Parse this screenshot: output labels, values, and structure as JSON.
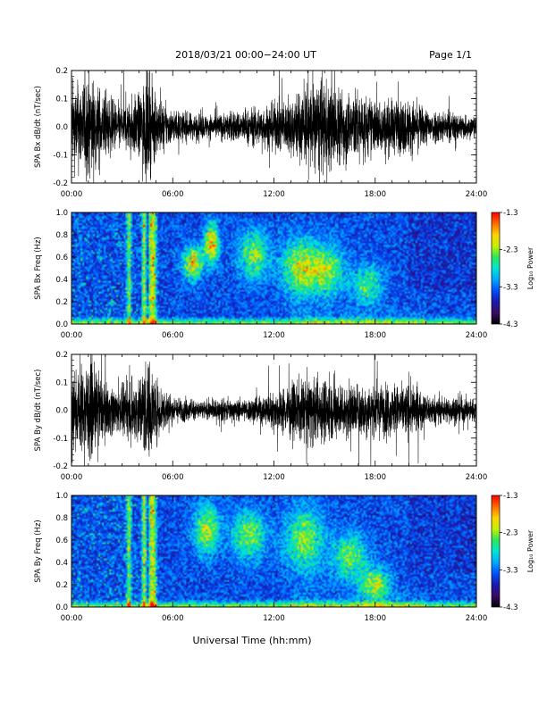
{
  "header": {
    "title": "2018/03/21   00:00−24:00 UT",
    "page": "Page 1/1"
  },
  "colors": {
    "trace": "#000000",
    "colormap": [
      "#000000",
      "#3a0a66",
      "#1a1aa8",
      "#0050ff",
      "#00a8ff",
      "#00e6d2",
      "#2ee65a",
      "#c8f000",
      "#ffd200",
      "#ff6a00",
      "#ff0000"
    ]
  },
  "chart_data": [
    {
      "type": "line",
      "ylabel": "SPA Bx dB/dt (nT/sec)",
      "xlim": [
        0,
        24
      ],
      "ylim": [
        -0.2,
        0.2
      ],
      "xticks": [
        "00:00",
        "06:00",
        "12:00",
        "18:00",
        "24:00"
      ],
      "yticks": [
        "-0.2",
        "-0.1",
        "0.0",
        "0.1",
        "0.2"
      ],
      "ytick_values": [
        -0.2,
        -0.1,
        0.0,
        0.1,
        0.2
      ],
      "envelope_hours": [
        0,
        1,
        2,
        3,
        4,
        4.5,
        5,
        6,
        7,
        8,
        9,
        10,
        11,
        12,
        13,
        14,
        15,
        16,
        17,
        18,
        19,
        20,
        21,
        22,
        23,
        24
      ],
      "envelope_amplitude": [
        0.14,
        0.2,
        0.12,
        0.08,
        0.12,
        0.2,
        0.11,
        0.06,
        0.05,
        0.045,
        0.05,
        0.06,
        0.07,
        0.09,
        0.1,
        0.16,
        0.17,
        0.14,
        0.13,
        0.1,
        0.1,
        0.1,
        0.07,
        0.06,
        0.05,
        0.04
      ]
    },
    {
      "type": "heatmap",
      "ylabel": "SPA Bx Freq (Hz)",
      "xlim": [
        0,
        24
      ],
      "ylim": [
        0,
        1.0
      ],
      "xticks": [
        "00:00",
        "06:00",
        "12:00",
        "18:00",
        "24:00"
      ],
      "yticks": [
        "0.0",
        "0.2",
        "0.4",
        "0.6",
        "0.8",
        "1.0"
      ],
      "ytick_values": [
        0,
        0.2,
        0.4,
        0.6,
        0.8,
        1.0
      ],
      "colorbar": {
        "label": "Log₁₀ Power",
        "range": [
          -4.3,
          -1.3
        ],
        "ticks": [
          "-1.3",
          "-2.3",
          "-3.3",
          "-4.3"
        ],
        "tick_values": [
          -1.3,
          -2.3,
          -3.3,
          -4.3
        ]
      },
      "bright_columns_hours": [
        3.4,
        4.3,
        4.7,
        4.9
      ],
      "emission_blobs": [
        {
          "t": 7.2,
          "f": 0.55,
          "st": 0.4,
          "sf": 0.1,
          "level": 0.55
        },
        {
          "t": 8.3,
          "f": 0.72,
          "st": 0.3,
          "sf": 0.12,
          "level": 0.6
        },
        {
          "t": 10.8,
          "f": 0.62,
          "st": 0.6,
          "sf": 0.15,
          "level": 0.4
        },
        {
          "t": 13.6,
          "f": 0.5,
          "st": 0.8,
          "sf": 0.18,
          "level": 0.45
        },
        {
          "t": 15.2,
          "f": 0.48,
          "st": 0.7,
          "sf": 0.15,
          "level": 0.4
        },
        {
          "t": 17.5,
          "f": 0.35,
          "st": 0.6,
          "sf": 0.12,
          "level": 0.35
        }
      ]
    },
    {
      "type": "line",
      "ylabel": "SPA By dB/dt (nT/sec)",
      "xlim": [
        0,
        24
      ],
      "ylim": [
        -0.2,
        0.2
      ],
      "xticks": [
        "00:00",
        "06:00",
        "12:00",
        "18:00",
        "24:00"
      ],
      "yticks": [
        "-0.2",
        "-0.1",
        "0.0",
        "0.1",
        "0.2"
      ],
      "ytick_values": [
        -0.2,
        -0.1,
        0.0,
        0.1,
        0.2
      ],
      "envelope_hours": [
        0,
        1,
        2,
        3,
        4,
        4.5,
        5,
        6,
        7,
        8,
        9,
        10,
        11,
        12,
        13,
        14,
        15,
        16,
        17,
        18,
        19,
        20,
        21,
        22,
        23,
        24
      ],
      "envelope_amplitude": [
        0.12,
        0.18,
        0.1,
        0.08,
        0.13,
        0.2,
        0.12,
        0.05,
        0.04,
        0.035,
        0.04,
        0.04,
        0.05,
        0.07,
        0.1,
        0.12,
        0.12,
        0.1,
        0.1,
        0.1,
        0.09,
        0.1,
        0.06,
        0.05,
        0.05,
        0.04
      ]
    },
    {
      "type": "heatmap",
      "ylabel": "SPA By Freq (Hz)",
      "xlim": [
        0,
        24
      ],
      "ylim": [
        0,
        1.0
      ],
      "xticks": [
        "00:00",
        "06:00",
        "12:00",
        "18:00",
        "24:00"
      ],
      "yticks": [
        "0.0",
        "0.2",
        "0.4",
        "0.6",
        "0.8",
        "1.0"
      ],
      "ytick_values": [
        0,
        0.2,
        0.4,
        0.6,
        0.8,
        1.0
      ],
      "colorbar": {
        "label": "Log₁₀ Power",
        "range": [
          -4.3,
          -1.3
        ],
        "ticks": [
          "-1.3",
          "-2.3",
          "-3.3",
          "-4.3"
        ],
        "tick_values": [
          -1.3,
          -2.3,
          -3.3,
          -4.3
        ]
      },
      "bright_columns_hours": [
        3.4,
        4.3,
        4.7,
        4.9
      ],
      "emission_blobs": [
        {
          "t": 8.0,
          "f": 0.7,
          "st": 0.5,
          "sf": 0.15,
          "level": 0.45
        },
        {
          "t": 10.5,
          "f": 0.65,
          "st": 0.7,
          "sf": 0.15,
          "level": 0.4
        },
        {
          "t": 13.8,
          "f": 0.6,
          "st": 0.8,
          "sf": 0.2,
          "level": 0.4
        },
        {
          "t": 16.5,
          "f": 0.45,
          "st": 0.7,
          "sf": 0.15,
          "level": 0.35
        },
        {
          "t": 18.0,
          "f": 0.2,
          "st": 0.6,
          "sf": 0.1,
          "level": 0.45
        }
      ]
    }
  ],
  "xlabel": "Universal Time (hh:mm)"
}
